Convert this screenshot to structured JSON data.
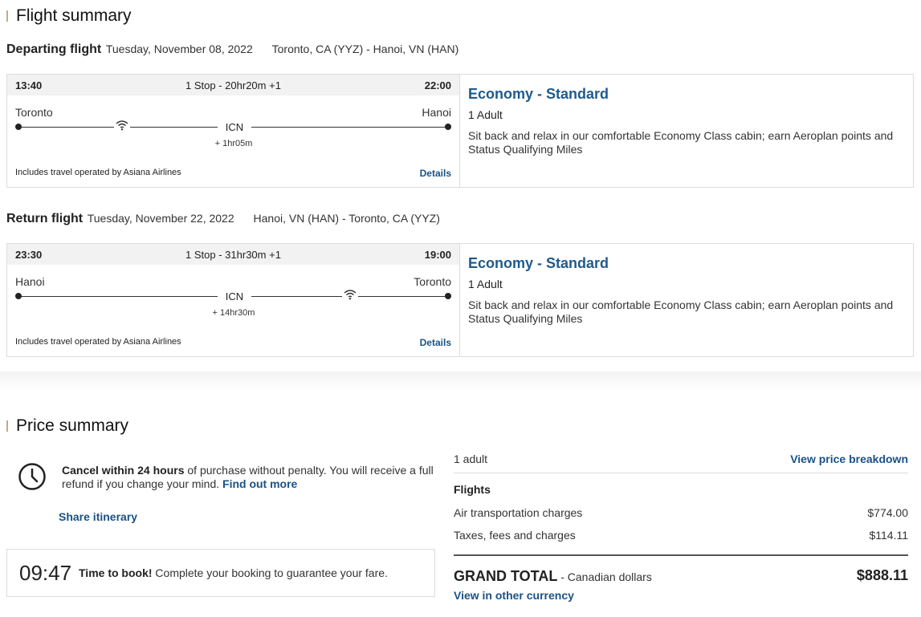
{
  "flight_summary": {
    "title": "Flight summary",
    "departing": {
      "label": "Departing flight",
      "date": "Tuesday, November 08, 2022",
      "route": "Toronto, CA (YYZ) - Hanoi, VN (HAN)",
      "dep_time": "13:40",
      "stops": "1 Stop - 20hr20m +1",
      "arr_time": "22:00",
      "origin_city": "Toronto",
      "dest_city": "Hanoi",
      "stop_code": "ICN",
      "layover": "+ 1hr05m",
      "operated_by": "Includes travel operated by Asiana Airlines",
      "details_label": "Details",
      "cabin": "Economy - Standard",
      "passengers": "1 Adult",
      "description": "Sit back and relax in our comfortable Economy Class cabin; earn Aeroplan points and Status Qualifying Miles"
    },
    "return": {
      "label": "Return flight",
      "date": "Tuesday, November 22, 2022",
      "route": "Hanoi, VN (HAN) - Toronto, CA (YYZ)",
      "dep_time": "23:30",
      "stops": "1 Stop - 31hr30m +1",
      "arr_time": "19:00",
      "origin_city": "Hanoi",
      "dest_city": "Toronto",
      "stop_code": "ICN",
      "layover": "+ 14hr30m",
      "operated_by": "Includes travel operated by Asiana Airlines",
      "details_label": "Details",
      "cabin": "Economy - Standard",
      "passengers": "1 Adult",
      "description": "Sit back and relax in our comfortable Economy Class cabin; earn Aeroplan points and Status Qualifying Miles"
    }
  },
  "price_summary": {
    "title": "Price summary",
    "cancel": {
      "bold": "Cancel within 24 hours",
      "text": " of purchase without penalty. You will receive a full refund if you change your mind. ",
      "link": "Find out more"
    },
    "share_label": "Share itinerary",
    "timer": {
      "time": "09:47",
      "bold": "Time to book!",
      "text": " Complete your booking to guarantee your fare."
    },
    "adults": "1 adult",
    "breakdown_label": "View price breakdown",
    "flights_label": "Flights",
    "items": [
      {
        "label": "Air transportation charges",
        "value": "$774.00"
      },
      {
        "label": "Taxes, fees and charges",
        "value": "$114.11"
      }
    ],
    "grand_total_label": "GRAND TOTAL",
    "currency": " - Canadian dollars",
    "grand_total_value": "$888.11",
    "other_currency_label": "View in other currency"
  },
  "icons": {
    "wifi": "wifi-icon",
    "clock": "clock-icon"
  },
  "colors": {
    "link": "#1a5285",
    "cabin": "#1f5a8c",
    "title_bar": "#c8a882"
  }
}
